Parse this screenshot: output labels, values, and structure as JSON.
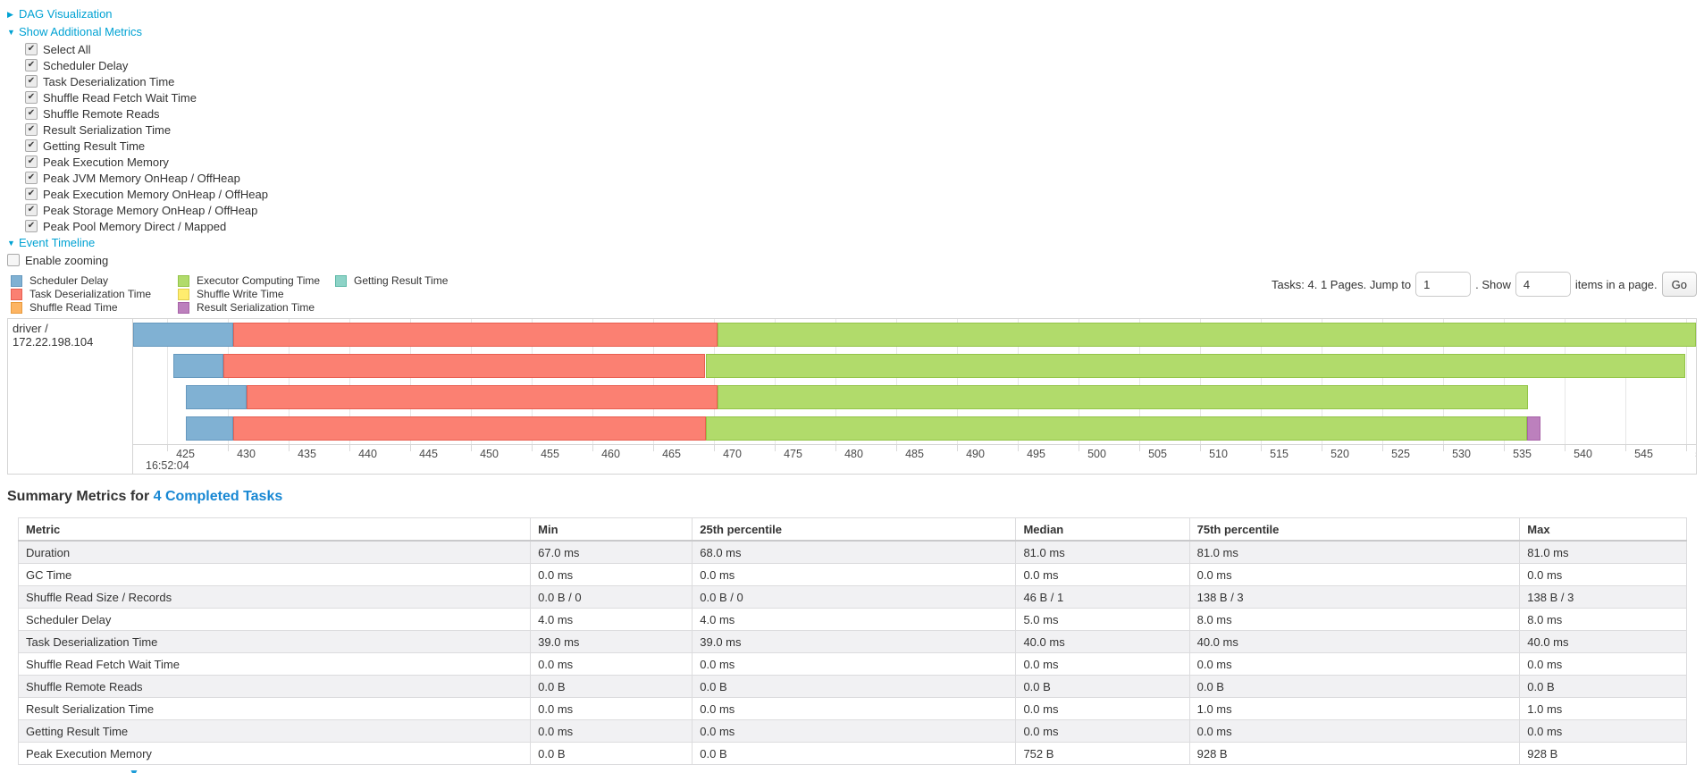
{
  "sections": {
    "dag": {
      "label": "DAG Visualization",
      "state": "collapsed"
    },
    "additional_metrics": {
      "label": "Show Additional Metrics",
      "state": "expanded"
    },
    "event_timeline": {
      "label": "Event Timeline",
      "state": "expanded"
    }
  },
  "additional_metrics": {
    "items": [
      {
        "label": "Select All",
        "checked": true
      },
      {
        "label": "Scheduler Delay",
        "checked": true
      },
      {
        "label": "Task Deserialization Time",
        "checked": true
      },
      {
        "label": "Shuffle Read Fetch Wait Time",
        "checked": true
      },
      {
        "label": "Shuffle Remote Reads",
        "checked": true
      },
      {
        "label": "Result Serialization Time",
        "checked": true
      },
      {
        "label": "Getting Result Time",
        "checked": true
      },
      {
        "label": "Peak Execution Memory",
        "checked": true
      },
      {
        "label": "Peak JVM Memory OnHeap / OffHeap",
        "checked": true
      },
      {
        "label": "Peak Execution Memory OnHeap / OffHeap",
        "checked": true
      },
      {
        "label": "Peak Storage Memory OnHeap / OffHeap",
        "checked": true
      },
      {
        "label": "Peak Pool Memory Direct / Mapped",
        "checked": true
      }
    ]
  },
  "enable_zooming": {
    "label": "Enable zooming",
    "checked": false
  },
  "legend": {
    "items": [
      {
        "key": "scheduler-delay",
        "label": "Scheduler Delay",
        "fill": "#80B1D3",
        "border": "#6598BE",
        "col": 0
      },
      {
        "key": "task-deserialization",
        "label": "Task Deserialization Time",
        "fill": "#FB8072",
        "border": "#E85E50",
        "col": 0
      },
      {
        "key": "shuffle-read",
        "label": "Shuffle Read Time",
        "fill": "#FDB462",
        "border": "#E89A3C",
        "col": 0
      },
      {
        "key": "executor-computing",
        "label": "Executor Computing Time",
        "fill": "#B1DB6B",
        "border": "#93C448",
        "col": 1
      },
      {
        "key": "shuffle-write",
        "label": "Shuffle Write Time",
        "fill": "#FFED6F",
        "border": "#E0CE4F",
        "col": 1
      },
      {
        "key": "result-serialization",
        "label": "Result Serialization Time",
        "fill": "#BC80BD",
        "border": "#A763A8",
        "col": 1
      },
      {
        "key": "getting-result",
        "label": "Getting Result Time",
        "fill": "#8DD3C7",
        "border": "#5FB9A8",
        "col": 2
      }
    ]
  },
  "pagination": {
    "prefix": "Tasks: 4. 1 Pages. Jump to",
    "page_value": "1",
    "mid": ". Show",
    "size_value": "4",
    "suffix": "items in a page.",
    "go_label": "Go"
  },
  "chart_data": {
    "type": "timeline",
    "group_label": "driver / 172.22.198.104",
    "axis": {
      "min": 422.2,
      "max": 550.8,
      "ticks_from": 425,
      "ticks_to": 550,
      "tick_step": 5,
      "major_label": "16:52:04",
      "unit": "ms within second 16:52:04"
    },
    "tasks": [
      {
        "name": "task-0",
        "segments": [
          {
            "type": "scheduler-delay",
            "start": 422.2,
            "end": 430.4
          },
          {
            "type": "task-deserialization",
            "start": 430.4,
            "end": 470.3
          },
          {
            "type": "executor-computing",
            "start": 470.3,
            "end": 550.8
          }
        ]
      },
      {
        "name": "task-1",
        "segments": [
          {
            "type": "scheduler-delay",
            "start": 425.5,
            "end": 429.6
          },
          {
            "type": "task-deserialization",
            "start": 429.6,
            "end": 469.3
          },
          {
            "type": "executor-computing",
            "start": 469.3,
            "end": 549.9
          }
        ]
      },
      {
        "name": "task-2",
        "segments": [
          {
            "type": "scheduler-delay",
            "start": 426.5,
            "end": 431.5
          },
          {
            "type": "task-deserialization",
            "start": 431.5,
            "end": 470.3
          },
          {
            "type": "executor-computing",
            "start": 470.3,
            "end": 537.0
          }
        ]
      },
      {
        "name": "task-3",
        "segments": [
          {
            "type": "scheduler-delay",
            "start": 426.5,
            "end": 430.4
          },
          {
            "type": "task-deserialization",
            "start": 430.4,
            "end": 469.3
          },
          {
            "type": "executor-computing",
            "start": 469.3,
            "end": 536.9
          },
          {
            "type": "result-serialization",
            "start": 536.9,
            "end": 538.0
          }
        ]
      }
    ]
  },
  "summary": {
    "heading_prefix": "Summary Metrics for ",
    "heading_link": "4 Completed Tasks"
  },
  "summary_table": {
    "headers": [
      "Metric",
      "Min",
      "25th percentile",
      "Median",
      "75th percentile",
      "Max"
    ],
    "rows": [
      {
        "metric": "Duration",
        "values": [
          "67.0 ms",
          "68.0 ms",
          "81.0 ms",
          "81.0 ms",
          "81.0 ms"
        ]
      },
      {
        "metric": "GC Time",
        "values": [
          "0.0 ms",
          "0.0 ms",
          "0.0 ms",
          "0.0 ms",
          "0.0 ms"
        ]
      },
      {
        "metric": "Shuffle Read Size / Records",
        "values": [
          "0.0 B / 0",
          "0.0 B / 0",
          "46 B / 1",
          "138 B / 3",
          "138 B / 3"
        ]
      },
      {
        "metric": "Scheduler Delay",
        "values": [
          "4.0 ms",
          "4.0 ms",
          "5.0 ms",
          "8.0 ms",
          "8.0 ms"
        ]
      },
      {
        "metric": "Task Deserialization Time",
        "values": [
          "39.0 ms",
          "39.0 ms",
          "40.0 ms",
          "40.0 ms",
          "40.0 ms"
        ]
      },
      {
        "metric": "Shuffle Read Fetch Wait Time",
        "values": [
          "0.0 ms",
          "0.0 ms",
          "0.0 ms",
          "0.0 ms",
          "0.0 ms"
        ]
      },
      {
        "metric": "Shuffle Remote Reads",
        "values": [
          "0.0 B",
          "0.0 B",
          "0.0 B",
          "0.0 B",
          "0.0 B"
        ]
      },
      {
        "metric": "Result Serialization Time",
        "values": [
          "0.0 ms",
          "0.0 ms",
          "0.0 ms",
          "1.0 ms",
          "1.0 ms"
        ]
      },
      {
        "metric": "Getting Result Time",
        "values": [
          "0.0 ms",
          "0.0 ms",
          "0.0 ms",
          "0.0 ms",
          "0.0 ms"
        ]
      },
      {
        "metric": "Peak Execution Memory",
        "values": [
          "0.0 B",
          "0.0 B",
          "752 B",
          "928 B",
          "928 B"
        ]
      }
    ]
  },
  "cutoff": {
    "glyph": "▼"
  }
}
